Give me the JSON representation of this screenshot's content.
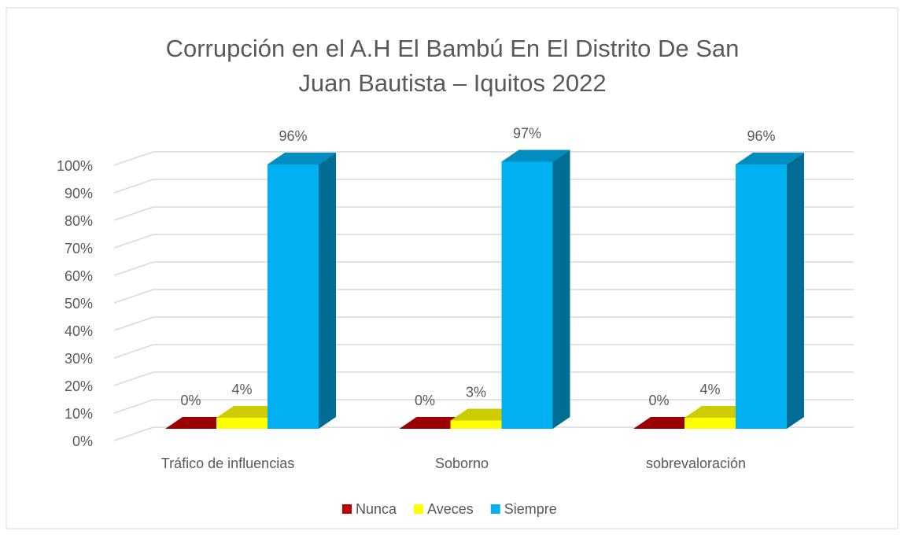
{
  "chart_data": {
    "type": "bar3d",
    "title": "Corrupción en el A.H El Bambú En El Distrito De San Juan Bautista – Iquitos 2022",
    "categories": [
      "Tráfico de influencias",
      "Soborno",
      "sobrevaloración"
    ],
    "series": [
      {
        "name": "Nunca",
        "color": "#c00000",
        "values": [
          0,
          0,
          0
        ],
        "value_labels": [
          "0%",
          "0%",
          "0%"
        ]
      },
      {
        "name": "Aveces",
        "color": "#ffff00",
        "values": [
          4,
          3,
          4
        ],
        "value_labels": [
          "4%",
          "3%",
          "4%"
        ]
      },
      {
        "name": "Siempre",
        "color": "#00b0f0",
        "values": [
          96,
          97,
          96
        ],
        "value_labels": [
          "96%",
          "97%",
          "96%"
        ]
      }
    ],
    "ylim": [
      0,
      100
    ],
    "yticks": [
      {
        "value": 0,
        "label": "0%"
      },
      {
        "value": 10,
        "label": "10%"
      },
      {
        "value": 20,
        "label": "20%"
      },
      {
        "value": 30,
        "label": "30%"
      },
      {
        "value": 40,
        "label": "40%"
      },
      {
        "value": 50,
        "label": "50%"
      },
      {
        "value": 60,
        "label": "60%"
      },
      {
        "value": 70,
        "label": "70%"
      },
      {
        "value": 80,
        "label": "80%"
      },
      {
        "value": 90,
        "label": "90%"
      },
      {
        "value": 100,
        "label": "100%"
      }
    ],
    "grid": true,
    "legend": "bottom"
  }
}
